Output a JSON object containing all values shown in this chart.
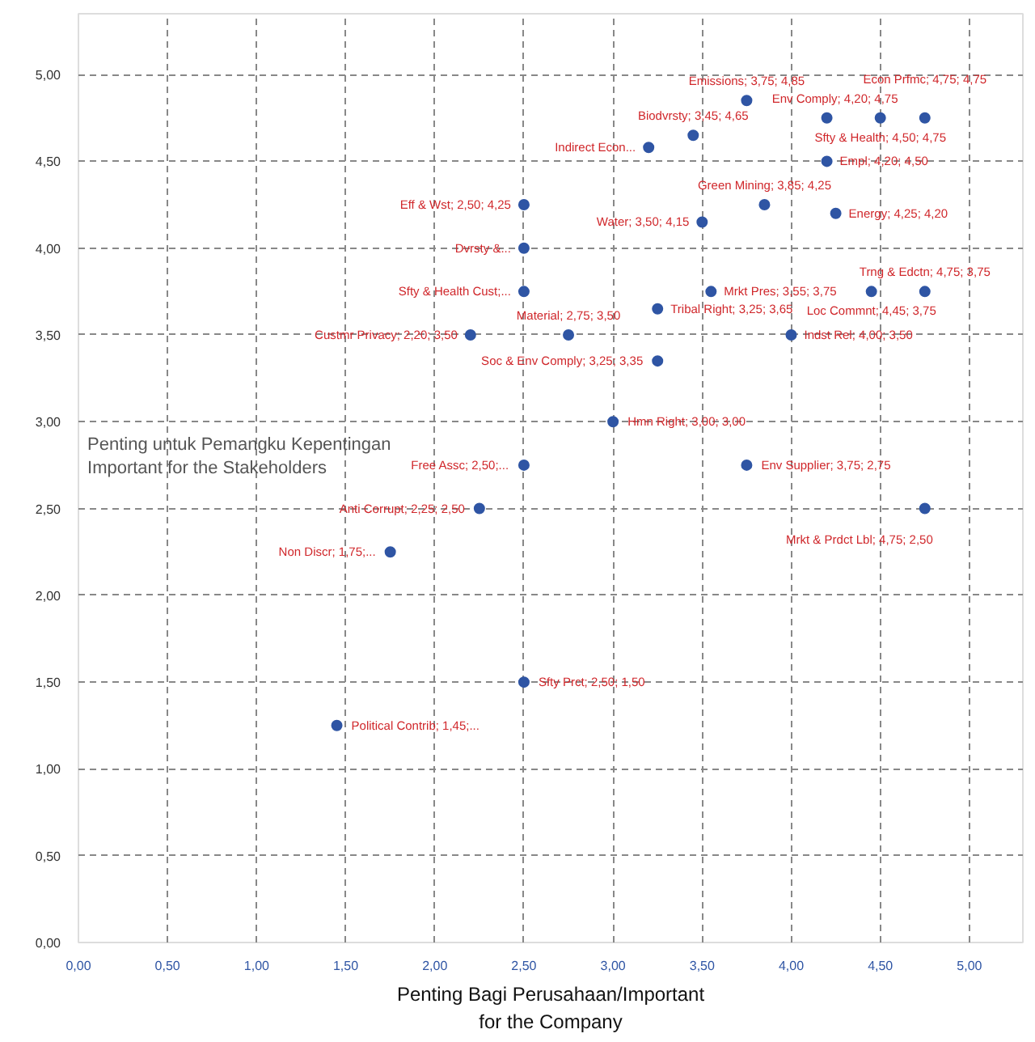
{
  "chart_data": {
    "type": "scatter",
    "xlabel": "Penting Bagi Perusahaan/Important\nfor the Company",
    "ylabel": "Penting untuk Pemangku Kepentingan\nImportant for the Stakeholders",
    "xlim": [
      0,
      5.3
    ],
    "ylim": [
      0,
      5.35
    ],
    "xticks": [
      {
        "value": 0,
        "label": "0,00"
      },
      {
        "value": 0.5,
        "label": "0,50"
      },
      {
        "value": 1,
        "label": "1,00"
      },
      {
        "value": 1.5,
        "label": "1,50"
      },
      {
        "value": 2,
        "label": "2,00"
      },
      {
        "value": 2.5,
        "label": "2,50"
      },
      {
        "value": 3,
        "label": "3,00"
      },
      {
        "value": 3.5,
        "label": "3,50"
      },
      {
        "value": 4,
        "label": "4,00"
      },
      {
        "value": 4.5,
        "label": "4,50"
      },
      {
        "value": 5,
        "label": "5,00"
      }
    ],
    "yticks": [
      {
        "value": 0,
        "label": "0,00"
      },
      {
        "value": 0.5,
        "label": "0,50"
      },
      {
        "value": 1,
        "label": "1,00"
      },
      {
        "value": 1.5,
        "label": "1,50"
      },
      {
        "value": 2,
        "label": "2,00"
      },
      {
        "value": 2.5,
        "label": "2,50"
      },
      {
        "value": 3,
        "label": "3,00"
      },
      {
        "value": 3.5,
        "label": "3,50"
      },
      {
        "value": 4,
        "label": "4,00"
      },
      {
        "value": 4.5,
        "label": "4,50"
      },
      {
        "value": 5,
        "label": "5,00"
      }
    ],
    "grid": true,
    "marker": "circle",
    "series": [
      {
        "color": "#2f55a4",
        "x": [
          4.75,
          4.5,
          4.2,
          3.75,
          3.45,
          3.2,
          4.2,
          3.5,
          3.85,
          4.25,
          2.5,
          2.5,
          2.5,
          3.25,
          3.55,
          4.45,
          4.75,
          4.0,
          2.75,
          2.2,
          3.25,
          3.0,
          3.75,
          2.5,
          4.75,
          2.25,
          1.75,
          2.5,
          1.45
        ],
        "values": [
          4.75,
          4.75,
          4.75,
          4.85,
          4.65,
          4.58,
          4.5,
          4.15,
          4.25,
          4.2,
          4.25,
          4.0,
          3.75,
          3.65,
          3.75,
          3.75,
          3.75,
          3.5,
          3.5,
          3.5,
          3.35,
          3.0,
          2.75,
          2.75,
          2.5,
          2.5,
          2.25,
          1.5,
          1.25
        ],
        "value_labels": [
          "Econ Prfmc; 4,75; 4,75",
          "Sfty & Health; 4,50; 4,75",
          "Env Comply; 4,20; 4,75",
          "Emissions; 3,75; 4,85",
          "Biodvrsty; 3,45; 4,65",
          "Indirect Econ...",
          "Empl; 4,20; 4,50",
          "Water; 3,50; 4,15",
          "Green Mining; 3,85; 4,25",
          "Energy; 4,25; 4,20",
          "Eff & Wst; 2,50; 4,25",
          "Dvrsty &...",
          "Sfty & Health Cust;...",
          "Tribal Right; 3,25; 3,65",
          "Mrkt Pres; 3,55; 3,75",
          "Loc Commnt; 4,45; 3,75",
          "Trng & Edctn; 4,75; 3,75",
          "Indst Rel; 4,00; 3,50",
          "Material; 2,75; 3,50",
          "Custmr Privacy; 2,20; 3,50",
          "Soc & Env Comply; 3,25; 3,35",
          "Hmn Right; 3,00; 3,00",
          "Env Supplier; 3,75; 2,75",
          "Free Assc; 2,50;...",
          "Mrkt & Prdct Lbl; 4,75; 2,50",
          "Anti Corrupt; 2,25; 2,50",
          "Non Discr; 1,75;...",
          "Sfty Prct; 2,50; 1,50",
          "Political Contrib; 1,45;..."
        ]
      }
    ]
  }
}
